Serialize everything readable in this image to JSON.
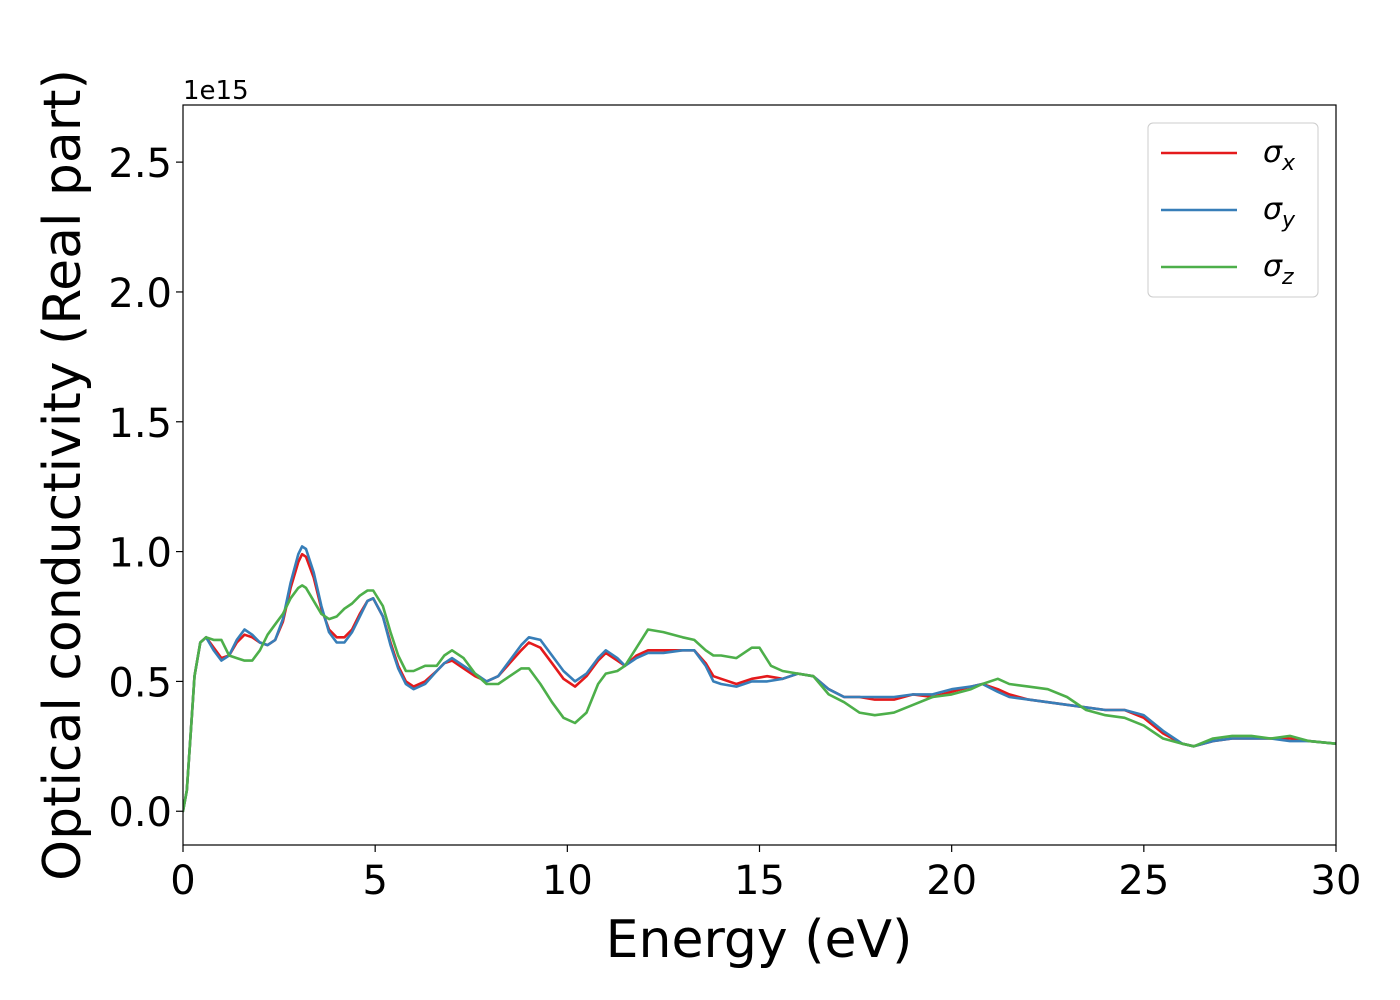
{
  "chart_data": {
    "type": "line",
    "title": "",
    "xlabel": "Energy (eV)",
    "ylabel": "Optical conductivity (Real part)",
    "y_offset_label": "1e15",
    "y_scale": 1000000000000000.0,
    "xlim": [
      0,
      30
    ],
    "ylim": [
      -0.13,
      2.72
    ],
    "x_ticks": [
      0,
      5,
      10,
      15,
      20,
      25,
      30
    ],
    "x_tick_labels": [
      "0",
      "5",
      "10",
      "15",
      "20",
      "25",
      "30"
    ],
    "y_ticks": [
      0.0,
      0.5,
      1.0,
      1.5,
      2.0,
      2.5
    ],
    "y_tick_labels": [
      "0.0",
      "0.5",
      "1.0",
      "1.5",
      "2.0",
      "2.5"
    ],
    "grid": false,
    "legend_position": "top-right",
    "series": [
      {
        "name": "σx",
        "symbol": "σ",
        "subscript": "x",
        "color": "#e41a1c",
        "points": [
          [
            0,
            0
          ],
          [
            0.1,
            0.08
          ],
          [
            0.2,
            0.3
          ],
          [
            0.3,
            0.52
          ],
          [
            0.45,
            0.65
          ],
          [
            0.6,
            0.67
          ],
          [
            0.8,
            0.63
          ],
          [
            1.0,
            0.59
          ],
          [
            1.2,
            0.6
          ],
          [
            1.4,
            0.65
          ],
          [
            1.6,
            0.68
          ],
          [
            1.8,
            0.67
          ],
          [
            2.0,
            0.65
          ],
          [
            2.2,
            0.64
          ],
          [
            2.4,
            0.66
          ],
          [
            2.6,
            0.73
          ],
          [
            2.8,
            0.86
          ],
          [
            3.0,
            0.96
          ],
          [
            3.1,
            0.99
          ],
          [
            3.2,
            0.98
          ],
          [
            3.4,
            0.9
          ],
          [
            3.6,
            0.78
          ],
          [
            3.8,
            0.7
          ],
          [
            4.0,
            0.67
          ],
          [
            4.2,
            0.67
          ],
          [
            4.4,
            0.7
          ],
          [
            4.6,
            0.76
          ],
          [
            4.8,
            0.81
          ],
          [
            4.95,
            0.82
          ],
          [
            5.2,
            0.75
          ],
          [
            5.4,
            0.65
          ],
          [
            5.6,
            0.56
          ],
          [
            5.8,
            0.5
          ],
          [
            6.0,
            0.48
          ],
          [
            6.3,
            0.5
          ],
          [
            6.6,
            0.54
          ],
          [
            6.8,
            0.57
          ],
          [
            7.0,
            0.58
          ],
          [
            7.3,
            0.55
          ],
          [
            7.6,
            0.52
          ],
          [
            7.9,
            0.5
          ],
          [
            8.2,
            0.52
          ],
          [
            8.5,
            0.57
          ],
          [
            8.8,
            0.62
          ],
          [
            9.0,
            0.65
          ],
          [
            9.3,
            0.63
          ],
          [
            9.6,
            0.57
          ],
          [
            9.9,
            0.51
          ],
          [
            10.2,
            0.48
          ],
          [
            10.5,
            0.52
          ],
          [
            10.8,
            0.58
          ],
          [
            11.0,
            0.61
          ],
          [
            11.3,
            0.58
          ],
          [
            11.5,
            0.56
          ],
          [
            11.8,
            0.6
          ],
          [
            12.1,
            0.62
          ],
          [
            12.5,
            0.62
          ],
          [
            13.0,
            0.62
          ],
          [
            13.3,
            0.62
          ],
          [
            13.6,
            0.57
          ],
          [
            13.8,
            0.52
          ],
          [
            14.0,
            0.51
          ],
          [
            14.4,
            0.49
          ],
          [
            14.8,
            0.51
          ],
          [
            15.2,
            0.52
          ],
          [
            15.6,
            0.51
          ],
          [
            16.0,
            0.53
          ],
          [
            16.4,
            0.52
          ],
          [
            16.8,
            0.47
          ],
          [
            17.2,
            0.44
          ],
          [
            17.6,
            0.44
          ],
          [
            18.0,
            0.43
          ],
          [
            18.5,
            0.43
          ],
          [
            19.0,
            0.45
          ],
          [
            19.5,
            0.44
          ],
          [
            20.0,
            0.46
          ],
          [
            20.5,
            0.48
          ],
          [
            20.8,
            0.49
          ],
          [
            21.2,
            0.47
          ],
          [
            21.5,
            0.45
          ],
          [
            22.0,
            0.43
          ],
          [
            22.5,
            0.42
          ],
          [
            23.0,
            0.41
          ],
          [
            23.5,
            0.4
          ],
          [
            24.0,
            0.39
          ],
          [
            24.5,
            0.39
          ],
          [
            25.0,
            0.36
          ],
          [
            25.5,
            0.3
          ],
          [
            26.0,
            0.26
          ],
          [
            26.3,
            0.25
          ],
          [
            26.8,
            0.27
          ],
          [
            27.3,
            0.28
          ],
          [
            27.8,
            0.28
          ],
          [
            28.3,
            0.28
          ],
          [
            28.8,
            0.28
          ],
          [
            29.3,
            0.27
          ],
          [
            30,
            0.26
          ]
        ]
      },
      {
        "name": "σy",
        "symbol": "σ",
        "subscript": "y",
        "color": "#377eb8",
        "points": [
          [
            0,
            0
          ],
          [
            0.1,
            0.08
          ],
          [
            0.2,
            0.3
          ],
          [
            0.3,
            0.52
          ],
          [
            0.45,
            0.65
          ],
          [
            0.6,
            0.67
          ],
          [
            0.8,
            0.62
          ],
          [
            1.0,
            0.58
          ],
          [
            1.2,
            0.6
          ],
          [
            1.4,
            0.66
          ],
          [
            1.6,
            0.7
          ],
          [
            1.8,
            0.68
          ],
          [
            2.0,
            0.65
          ],
          [
            2.2,
            0.64
          ],
          [
            2.4,
            0.66
          ],
          [
            2.6,
            0.74
          ],
          [
            2.8,
            0.88
          ],
          [
            3.0,
            0.99
          ],
          [
            3.1,
            1.02
          ],
          [
            3.2,
            1.01
          ],
          [
            3.4,
            0.92
          ],
          [
            3.6,
            0.79
          ],
          [
            3.8,
            0.69
          ],
          [
            4.0,
            0.65
          ],
          [
            4.2,
            0.65
          ],
          [
            4.4,
            0.69
          ],
          [
            4.6,
            0.75
          ],
          [
            4.8,
            0.81
          ],
          [
            4.95,
            0.82
          ],
          [
            5.2,
            0.75
          ],
          [
            5.4,
            0.64
          ],
          [
            5.6,
            0.55
          ],
          [
            5.8,
            0.49
          ],
          [
            6.0,
            0.47
          ],
          [
            6.3,
            0.49
          ],
          [
            6.6,
            0.54
          ],
          [
            6.8,
            0.57
          ],
          [
            7.0,
            0.59
          ],
          [
            7.3,
            0.56
          ],
          [
            7.6,
            0.53
          ],
          [
            7.9,
            0.5
          ],
          [
            8.2,
            0.52
          ],
          [
            8.5,
            0.58
          ],
          [
            8.8,
            0.64
          ],
          [
            9.0,
            0.67
          ],
          [
            9.3,
            0.66
          ],
          [
            9.6,
            0.6
          ],
          [
            9.9,
            0.54
          ],
          [
            10.2,
            0.5
          ],
          [
            10.5,
            0.53
          ],
          [
            10.8,
            0.59
          ],
          [
            11.0,
            0.62
          ],
          [
            11.3,
            0.59
          ],
          [
            11.5,
            0.56
          ],
          [
            11.8,
            0.59
          ],
          [
            12.1,
            0.61
          ],
          [
            12.5,
            0.61
          ],
          [
            13.0,
            0.62
          ],
          [
            13.3,
            0.62
          ],
          [
            13.6,
            0.56
          ],
          [
            13.8,
            0.5
          ],
          [
            14.0,
            0.49
          ],
          [
            14.4,
            0.48
          ],
          [
            14.8,
            0.5
          ],
          [
            15.2,
            0.5
          ],
          [
            15.6,
            0.51
          ],
          [
            16.0,
            0.53
          ],
          [
            16.4,
            0.52
          ],
          [
            16.8,
            0.47
          ],
          [
            17.2,
            0.44
          ],
          [
            17.6,
            0.44
          ],
          [
            18.0,
            0.44
          ],
          [
            18.5,
            0.44
          ],
          [
            19.0,
            0.45
          ],
          [
            19.5,
            0.45
          ],
          [
            20.0,
            0.47
          ],
          [
            20.5,
            0.48
          ],
          [
            20.8,
            0.49
          ],
          [
            21.2,
            0.46
          ],
          [
            21.5,
            0.44
          ],
          [
            22.0,
            0.43
          ],
          [
            22.5,
            0.42
          ],
          [
            23.0,
            0.41
          ],
          [
            23.5,
            0.4
          ],
          [
            24.0,
            0.39
          ],
          [
            24.5,
            0.39
          ],
          [
            25.0,
            0.37
          ],
          [
            25.5,
            0.31
          ],
          [
            26.0,
            0.26
          ],
          [
            26.3,
            0.25
          ],
          [
            26.8,
            0.27
          ],
          [
            27.3,
            0.28
          ],
          [
            27.8,
            0.28
          ],
          [
            28.3,
            0.28
          ],
          [
            28.8,
            0.27
          ],
          [
            29.3,
            0.27
          ],
          [
            30,
            0.26
          ]
        ]
      },
      {
        "name": "σz",
        "symbol": "σ",
        "subscript": "z",
        "color": "#4daf4a",
        "points": [
          [
            0,
            0
          ],
          [
            0.1,
            0.08
          ],
          [
            0.2,
            0.3
          ],
          [
            0.3,
            0.52
          ],
          [
            0.45,
            0.65
          ],
          [
            0.6,
            0.67
          ],
          [
            0.8,
            0.66
          ],
          [
            1.0,
            0.66
          ],
          [
            1.2,
            0.6
          ],
          [
            1.4,
            0.59
          ],
          [
            1.6,
            0.58
          ],
          [
            1.8,
            0.58
          ],
          [
            2.0,
            0.62
          ],
          [
            2.2,
            0.68
          ],
          [
            2.4,
            0.72
          ],
          [
            2.6,
            0.76
          ],
          [
            2.8,
            0.82
          ],
          [
            3.0,
            0.86
          ],
          [
            3.1,
            0.87
          ],
          [
            3.2,
            0.86
          ],
          [
            3.4,
            0.81
          ],
          [
            3.6,
            0.76
          ],
          [
            3.8,
            0.74
          ],
          [
            4.0,
            0.75
          ],
          [
            4.2,
            0.78
          ],
          [
            4.4,
            0.8
          ],
          [
            4.6,
            0.83
          ],
          [
            4.8,
            0.85
          ],
          [
            4.95,
            0.85
          ],
          [
            5.2,
            0.79
          ],
          [
            5.4,
            0.69
          ],
          [
            5.6,
            0.6
          ],
          [
            5.8,
            0.54
          ],
          [
            6.0,
            0.54
          ],
          [
            6.3,
            0.56
          ],
          [
            6.6,
            0.56
          ],
          [
            6.8,
            0.6
          ],
          [
            7.0,
            0.62
          ],
          [
            7.3,
            0.59
          ],
          [
            7.6,
            0.53
          ],
          [
            7.9,
            0.49
          ],
          [
            8.2,
            0.49
          ],
          [
            8.5,
            0.52
          ],
          [
            8.8,
            0.55
          ],
          [
            9.0,
            0.55
          ],
          [
            9.3,
            0.49
          ],
          [
            9.6,
            0.42
          ],
          [
            9.9,
            0.36
          ],
          [
            10.2,
            0.34
          ],
          [
            10.5,
            0.38
          ],
          [
            10.8,
            0.49
          ],
          [
            11.0,
            0.53
          ],
          [
            11.3,
            0.54
          ],
          [
            11.5,
            0.56
          ],
          [
            11.8,
            0.63
          ],
          [
            12.1,
            0.7
          ],
          [
            12.5,
            0.69
          ],
          [
            13.0,
            0.67
          ],
          [
            13.3,
            0.66
          ],
          [
            13.6,
            0.62
          ],
          [
            13.8,
            0.6
          ],
          [
            14.0,
            0.6
          ],
          [
            14.4,
            0.59
          ],
          [
            14.8,
            0.63
          ],
          [
            15.0,
            0.63
          ],
          [
            15.3,
            0.56
          ],
          [
            15.6,
            0.54
          ],
          [
            16.0,
            0.53
          ],
          [
            16.4,
            0.52
          ],
          [
            16.8,
            0.45
          ],
          [
            17.2,
            0.42
          ],
          [
            17.6,
            0.38
          ],
          [
            18.0,
            0.37
          ],
          [
            18.5,
            0.38
          ],
          [
            19.0,
            0.41
          ],
          [
            19.5,
            0.44
          ],
          [
            20.0,
            0.45
          ],
          [
            20.5,
            0.47
          ],
          [
            20.8,
            0.49
          ],
          [
            21.2,
            0.51
          ],
          [
            21.5,
            0.49
          ],
          [
            22.0,
            0.48
          ],
          [
            22.5,
            0.47
          ],
          [
            23.0,
            0.44
          ],
          [
            23.5,
            0.39
          ],
          [
            24.0,
            0.37
          ],
          [
            24.5,
            0.36
          ],
          [
            25.0,
            0.33
          ],
          [
            25.5,
            0.28
          ],
          [
            26.0,
            0.26
          ],
          [
            26.3,
            0.25
          ],
          [
            26.8,
            0.28
          ],
          [
            27.3,
            0.29
          ],
          [
            27.8,
            0.29
          ],
          [
            28.3,
            0.28
          ],
          [
            28.8,
            0.29
          ],
          [
            29.3,
            0.27
          ],
          [
            30,
            0.26
          ]
        ]
      }
    ]
  }
}
